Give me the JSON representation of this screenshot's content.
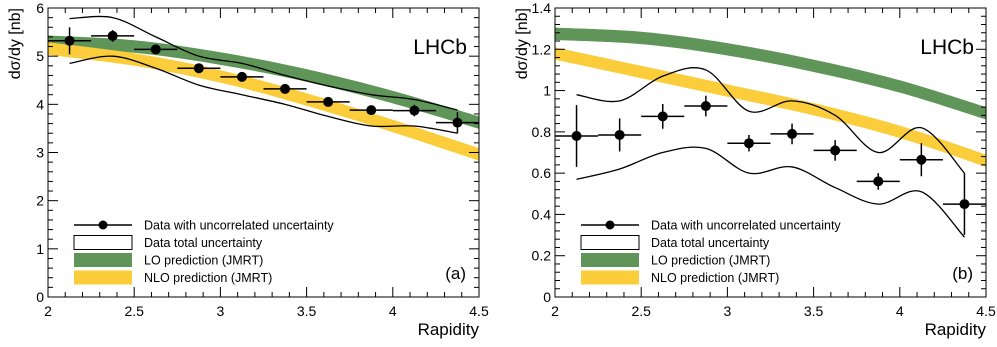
{
  "chart_data": [
    {
      "type": "line",
      "panel_label": "(a)",
      "experiment": "LHCb",
      "xlabel": "Rapidity",
      "ylabel": "dσ/dy [nb]",
      "xlim": [
        2,
        4.5
      ],
      "ylim": [
        0,
        6
      ],
      "xticks": [
        "2",
        "2.5",
        "3",
        "3.5",
        "4",
        "4.5"
      ],
      "yticks": [
        "0",
        "1",
        "2",
        "3",
        "4",
        "5",
        "6"
      ],
      "legend_position": "bottom-left",
      "legend": [
        {
          "label": "Data with uncorrelated uncertainty",
          "kind": "marker"
        },
        {
          "label": "Data total uncertainty",
          "kind": "outline"
        },
        {
          "label": "LO prediction (JMRT)",
          "kind": "band",
          "color": "#5f9558"
        },
        {
          "label": "NLO prediction (JMRT)",
          "kind": "band",
          "color": "#fbcd3a"
        }
      ],
      "data": {
        "x": [
          2.125,
          2.375,
          2.625,
          2.875,
          3.125,
          3.375,
          3.625,
          3.875,
          4.125,
          4.375
        ],
        "xerr": 0.125,
        "y": [
          5.32,
          5.42,
          5.14,
          4.75,
          4.57,
          4.32,
          4.05,
          3.88,
          3.87,
          3.62
        ],
        "yerr": [
          0.28,
          0.12,
          0.08,
          0.08,
          0.07,
          0.07,
          0.07,
          0.08,
          0.12,
          0.22
        ]
      },
      "total_uncertainty": {
        "x": [
          2.125,
          2.375,
          2.625,
          2.875,
          3.125,
          3.375,
          3.625,
          3.875,
          4.125,
          4.375
        ],
        "upper": [
          5.78,
          5.8,
          5.4,
          5.0,
          4.85,
          4.6,
          4.38,
          4.2,
          4.1,
          3.88
        ],
        "lower": [
          4.85,
          5.0,
          4.75,
          4.4,
          4.2,
          4.0,
          3.75,
          3.55,
          3.55,
          3.4
        ]
      },
      "lo_band": {
        "x": [
          2.0,
          2.5,
          3.0,
          3.5,
          4.0,
          4.5
        ],
        "y": [
          5.3,
          5.2,
          4.95,
          4.6,
          4.15,
          3.62
        ],
        "half_width": 0.13,
        "color": "#5f9558"
      },
      "nlo_band": {
        "x": [
          2.0,
          2.5,
          3.0,
          3.5,
          4.0,
          4.5
        ],
        "y": [
          5.16,
          4.93,
          4.58,
          4.1,
          3.55,
          2.96
        ],
        "half_width": 0.13,
        "color": "#fbcd3a"
      }
    },
    {
      "type": "line",
      "panel_label": "(b)",
      "experiment": "LHCb",
      "xlabel": "Rapidity",
      "ylabel": "dσ/dy [nb]",
      "xlim": [
        2,
        4.5
      ],
      "ylim": [
        0,
        1.4
      ],
      "xticks": [
        "2",
        "2.5",
        "3",
        "3.5",
        "4",
        "4.5"
      ],
      "yticks": [
        "0",
        "0.2",
        "0.4",
        "0.6",
        "0.8",
        "1",
        "1.2",
        "1.4"
      ],
      "legend_position": "bottom-left",
      "legend": [
        {
          "label": "Data with uncorrelated uncertainty",
          "kind": "marker"
        },
        {
          "label": "Data total uncertainty",
          "kind": "outline"
        },
        {
          "label": "LO prediction (JMRT)",
          "kind": "band",
          "color": "#5f9558"
        },
        {
          "label": "NLO prediction (JMRT)",
          "kind": "band",
          "color": "#fbcd3a"
        }
      ],
      "data": {
        "x": [
          2.125,
          2.375,
          2.625,
          2.875,
          3.125,
          3.375,
          3.625,
          3.875,
          4.125,
          4.375
        ],
        "xerr": 0.125,
        "y": [
          0.78,
          0.785,
          0.875,
          0.925,
          0.745,
          0.79,
          0.71,
          0.56,
          0.665,
          0.45
        ],
        "yerr": [
          0.15,
          0.08,
          0.06,
          0.05,
          0.04,
          0.05,
          0.05,
          0.04,
          0.08,
          0.15
        ]
      },
      "total_uncertainty": {
        "x": [
          2.125,
          2.375,
          2.625,
          2.875,
          3.125,
          3.375,
          3.625,
          3.875,
          4.125,
          4.375
        ],
        "upper": [
          0.98,
          0.95,
          1.07,
          1.1,
          0.9,
          0.95,
          0.88,
          0.7,
          0.82,
          0.6
        ],
        "lower": [
          0.57,
          0.62,
          0.7,
          0.72,
          0.6,
          0.63,
          0.53,
          0.45,
          0.51,
          0.29
        ]
      },
      "lo_band": {
        "x": [
          2.0,
          2.5,
          3.0,
          3.5,
          4.0,
          4.5
        ],
        "y": [
          1.275,
          1.255,
          1.2,
          1.12,
          1.02,
          0.89
        ],
        "half_width": 0.03,
        "color": "#5f9558"
      },
      "nlo_band": {
        "x": [
          2.0,
          2.5,
          3.0,
          3.5,
          4.0,
          4.5
        ],
        "y": [
          1.18,
          1.09,
          1.0,
          0.91,
          0.8,
          0.66
        ],
        "half_width": 0.03,
        "color": "#fbcd3a"
      }
    }
  ]
}
